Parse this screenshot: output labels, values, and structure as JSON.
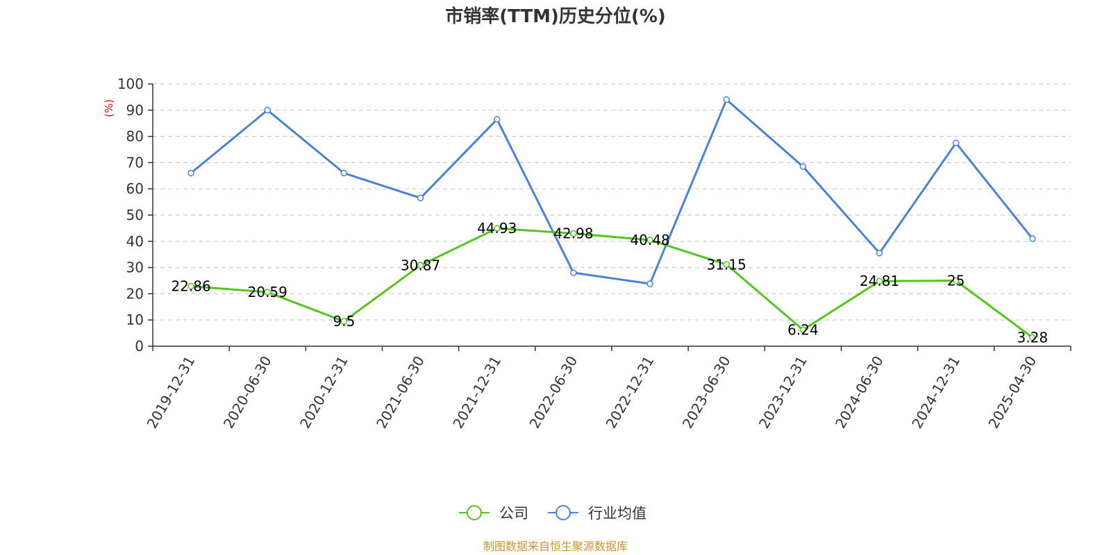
{
  "chart_data": {
    "type": "line",
    "title": "市销率(TTM)历史分位(%)",
    "ylabel": "(%)",
    "ylim": [
      0,
      100
    ],
    "yticks": [
      0,
      10,
      20,
      30,
      40,
      50,
      60,
      70,
      80,
      90,
      100
    ],
    "categories": [
      "2019-12-31",
      "2020-06-30",
      "2020-12-31",
      "2021-06-30",
      "2021-12-31",
      "2022-06-30",
      "2022-12-31",
      "2023-06-30",
      "2023-12-31",
      "2024-06-30",
      "2024-12-31",
      "2025-04-30"
    ],
    "series": [
      {
        "name": "公司",
        "color": "#52c41a",
        "values": [
          22.86,
          20.59,
          9.5,
          30.87,
          44.93,
          42.98,
          40.48,
          31.15,
          6.24,
          24.81,
          25,
          3.28
        ],
        "labels": [
          "22.86",
          "20.59",
          "9.5",
          "30.87",
          "44.93",
          "42.98",
          "40.48",
          "31.15",
          "6.24",
          "24.81",
          "25",
          "3.28"
        ]
      },
      {
        "name": "行业均值",
        "color": "#4a7fdc",
        "values": [
          66,
          90,
          66,
          56.5,
          86.5,
          28,
          23.8,
          94,
          68.5,
          35.5,
          77.5,
          41
        ]
      }
    ],
    "grid": true,
    "legend_position": "bottom-center"
  },
  "source": "制图数据来自恒生聚源数据库"
}
